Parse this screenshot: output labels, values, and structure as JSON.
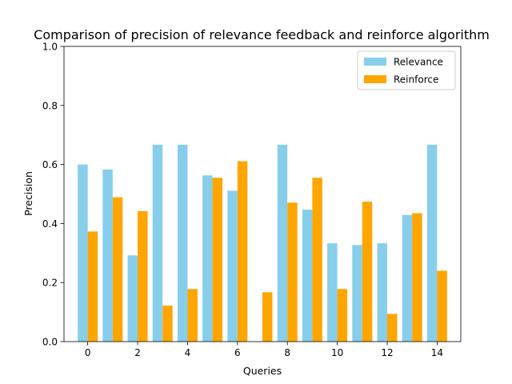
{
  "chart_data": {
    "type": "bar",
    "title": "Comparison of precision of relevance feedback and reinforce algorithm",
    "xlabel": "Queries",
    "ylabel": "Precision",
    "x": [
      0,
      1,
      2,
      3,
      4,
      5,
      6,
      7,
      8,
      9,
      10,
      11,
      12,
      13,
      14
    ],
    "xticks": [
      "0",
      "2",
      "4",
      "6",
      "8",
      "10",
      "12",
      "14"
    ],
    "xtick_values": [
      0,
      2,
      4,
      6,
      8,
      10,
      12,
      14
    ],
    "xlim": [
      -0.95,
      14.95
    ],
    "ylim": [
      0,
      1.0
    ],
    "yticks": [
      "0.0",
      "0.2",
      "0.4",
      "0.6",
      "0.8",
      "1.0"
    ],
    "ytick_values": [
      0.0,
      0.2,
      0.4,
      0.6,
      0.8,
      1.0
    ],
    "grid": false,
    "legend": "top-right",
    "series": [
      {
        "name": "Relevance",
        "color": "#87ceeb",
        "values": [
          0.6,
          0.583,
          0.292,
          0.667,
          0.667,
          0.563,
          0.511,
          0.0,
          0.667,
          0.447,
          0.333,
          0.327,
          0.333,
          0.429,
          0.667
        ]
      },
      {
        "name": "Reinforce",
        "color": "#ffa500",
        "values": [
          0.373,
          0.489,
          0.442,
          0.122,
          0.178,
          0.555,
          0.611,
          0.167,
          0.471,
          0.555,
          0.178,
          0.474,
          0.094,
          0.435,
          0.24
        ]
      }
    ]
  }
}
